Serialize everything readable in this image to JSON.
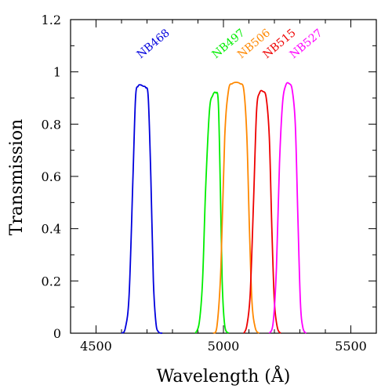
{
  "chart_data": {
    "type": "line",
    "xlabel": "Wavelength (Å)",
    "ylabel": "Transmission",
    "xlim": [
      4400,
      5600
    ],
    "ylim": [
      0,
      1.2
    ],
    "xticks": [
      4500,
      5000,
      5500
    ],
    "yticks": [
      0,
      0.2,
      0.4,
      0.6,
      0.8,
      1,
      1.2
    ],
    "ytick_labels": [
      "0",
      "0.2",
      "0.4",
      "0.6",
      "0.8",
      "1",
      "1.2"
    ],
    "grid": false,
    "series": [
      {
        "name": "NB468",
        "color": "#0000dd",
        "x": [
          4600,
          4615,
          4630,
          4645,
          4655,
          4665,
          4675,
          4685,
          4695,
          4705,
          4715,
          4725,
          4735,
          4745,
          4760
        ],
        "y": [
          0,
          0.02,
          0.15,
          0.6,
          0.9,
          0.945,
          0.95,
          0.945,
          0.94,
          0.9,
          0.6,
          0.2,
          0.04,
          0.005,
          0
        ]
      },
      {
        "name": "NB497",
        "color": "#00ee00",
        "x": [
          4890,
          4905,
          4918,
          4930,
          4945,
          4958,
          4970,
          4980,
          4988,
          4995,
          5005,
          5020
        ],
        "y": [
          0,
          0.04,
          0.2,
          0.55,
          0.85,
          0.91,
          0.92,
          0.88,
          0.55,
          0.2,
          0.03,
          0
        ]
      },
      {
        "name": "NB506",
        "color": "#ff8800",
        "x": [
          4960,
          4975,
          4990,
          5005,
          5020,
          5035,
          5050,
          5065,
          5080,
          5092,
          5102,
          5112,
          5125,
          5140
        ],
        "y": [
          0,
          0.03,
          0.25,
          0.75,
          0.93,
          0.955,
          0.96,
          0.955,
          0.93,
          0.75,
          0.4,
          0.12,
          0.02,
          0
        ]
      },
      {
        "name": "NB515",
        "color": "#ee0000",
        "x": [
          5080,
          5092,
          5105,
          5118,
          5130,
          5142,
          5155,
          5168,
          5180,
          5190,
          5200,
          5212,
          5225
        ],
        "y": [
          0,
          0.03,
          0.15,
          0.5,
          0.85,
          0.92,
          0.925,
          0.9,
          0.75,
          0.4,
          0.12,
          0.02,
          0
        ]
      },
      {
        "name": "NB527",
        "color": "#ff00ff",
        "x": [
          5180,
          5195,
          5208,
          5220,
          5232,
          5245,
          5258,
          5270,
          5282,
          5292,
          5302,
          5312,
          5325
        ],
        "y": [
          0,
          0.04,
          0.25,
          0.65,
          0.88,
          0.95,
          0.955,
          0.93,
          0.8,
          0.45,
          0.12,
          0.02,
          0
        ]
      }
    ],
    "annotations": [
      {
        "text": "NB468",
        "x": 4675,
        "y": 1.05,
        "color": "#0000dd"
      },
      {
        "text": "NB497",
        "x": 4970,
        "y": 1.05,
        "color": "#00ee00"
      },
      {
        "text": "NB506",
        "x": 5070,
        "y": 1.05,
        "color": "#ff8800"
      },
      {
        "text": "NB515",
        "x": 5170,
        "y": 1.05,
        "color": "#ee0000"
      },
      {
        "text": "NB527",
        "x": 5275,
        "y": 1.05,
        "color": "#ff00ff"
      }
    ]
  }
}
